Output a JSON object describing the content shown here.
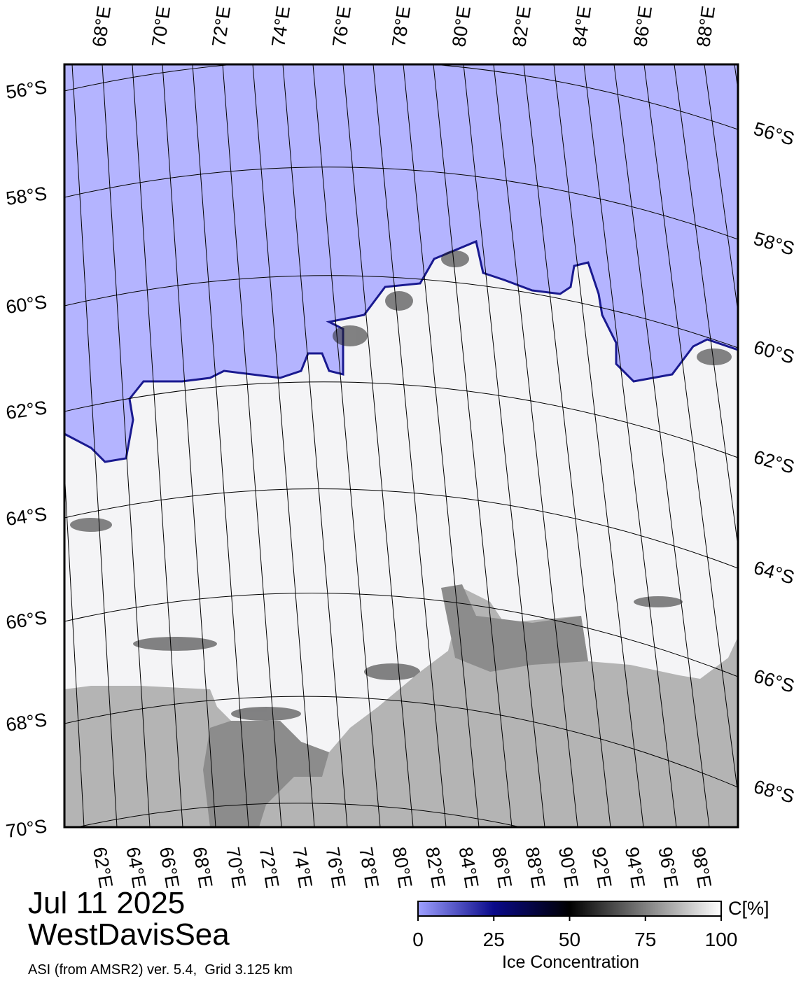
{
  "date": "Jul 11 2025",
  "region": "WestDavisSea",
  "source": "ASI (from AMSR2) ver. 5.4,  Grid 3.125 km",
  "map": {
    "top_lon_labels": [
      "68°E",
      "70°E",
      "72°E",
      "74°E",
      "76°E",
      "78°E",
      "80°E",
      "82°E",
      "84°E",
      "86°E",
      "88°E"
    ],
    "left_lat_labels": [
      "56°S",
      "58°S",
      "60°S",
      "62°S",
      "64°S",
      "66°S",
      "68°S",
      "70°S"
    ],
    "right_lat_labels": [
      "56°S",
      "58°S",
      "60°S",
      "62°S",
      "64°S",
      "66°S",
      "68°S"
    ],
    "bottom_lon_labels": [
      "62°E",
      "64°E",
      "66°E",
      "68°E",
      "70°E",
      "72°E",
      "74°E",
      "76°E",
      "78°E",
      "80°E",
      "82°E",
      "84°E",
      "86°E",
      "88°E",
      "90°E",
      "92°E",
      "94°E",
      "96°E",
      "98°E"
    ]
  },
  "colorbar": {
    "title": "Ice Concentration",
    "unit": "C[%]",
    "lim": [
      0,
      100
    ],
    "ticks": [
      0,
      25,
      50,
      75,
      100
    ]
  }
}
